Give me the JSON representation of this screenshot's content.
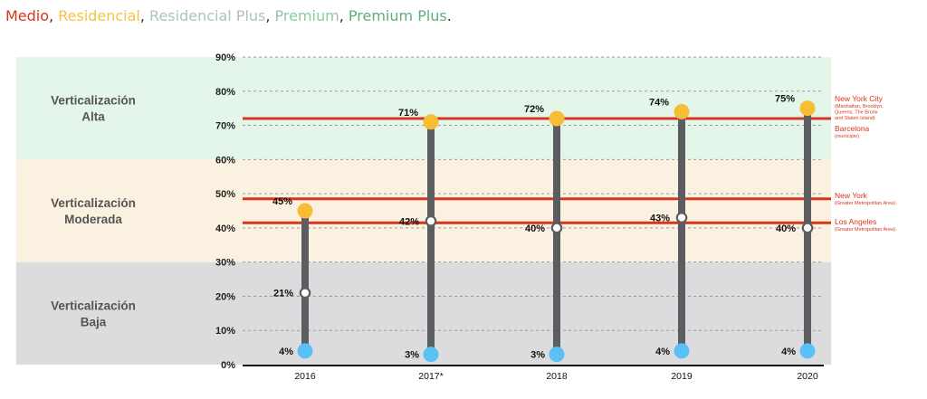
{
  "legend": {
    "items": [
      {
        "label": "Medio",
        "color": "#d8351c"
      },
      {
        "label": "Residencial",
        "color": "#f5c342"
      },
      {
        "label": "Residencial Plus",
        "color": "#a9c5b5"
      },
      {
        "label": "Premium",
        "color": "#8fc9a4"
      },
      {
        "label": "Premium Plus",
        "color": "#5fae7f"
      }
    ],
    "separator": ",",
    "terminator": "."
  },
  "chart_data": {
    "type": "dot-range",
    "categories": [
      "2016",
      "2017*",
      "2018",
      "2019",
      "2020"
    ],
    "ylim": [
      0,
      90
    ],
    "yticks": [
      "0%",
      "10%",
      "20%",
      "30%",
      "40%",
      "50%",
      "60%",
      "70%",
      "80%",
      "90%"
    ],
    "grid": true,
    "series": [
      {
        "values": [
          45,
          71,
          72,
          74,
          75
        ],
        "labels": [
          "45%",
          "71%",
          "72%",
          "74%",
          "75%"
        ],
        "color": "#f7bd34"
      },
      {
        "values": [
          21,
          42,
          40,
          43,
          40
        ],
        "labels": [
          "21%",
          "42%",
          "40%",
          "43%",
          "40%"
        ],
        "color": "#ffffff"
      },
      {
        "values": [
          4,
          3,
          3,
          4,
          4
        ],
        "labels": [
          "4%",
          "3%",
          "3%",
          "4%",
          "4%"
        ],
        "color": "#5bc0f5"
      }
    ],
    "bands": [
      {
        "label_lines": [
          "Verticalización",
          "Alta"
        ],
        "from": 60,
        "to": 90,
        "color": "#e3f6e9"
      },
      {
        "label_lines": [
          "Verticalización",
          "Moderada"
        ],
        "from": 30,
        "to": 60,
        "color": "#fbf1e0"
      },
      {
        "label_lines": [
          "Verticalización",
          "Baja"
        ],
        "from": 0,
        "to": 30,
        "color": "#dcdcde"
      }
    ],
    "reference_lines": [
      {
        "value": 72,
        "name_lines": [
          "New York City"
        ],
        "note_lines": [
          "(Manhattan, Brooklyn,",
          "Queens, The Bronx",
          "and Staten Island)"
        ]
      },
      {
        "value": 72,
        "name_lines": [
          "Barcelona"
        ],
        "note_lines": [
          "(municipio)"
        ]
      },
      {
        "value": 48.5,
        "name_lines": [
          "New York"
        ],
        "note_lines": [
          "(Greater Metropolitan Area)"
        ]
      },
      {
        "value": 41.5,
        "name_lines": [
          "Los Angeles"
        ],
        "note_lines": [
          "(Greater Metropolitan Area)"
        ]
      }
    ],
    "stem_color": "#5b5d61",
    "reference_color": "#d8351c"
  }
}
